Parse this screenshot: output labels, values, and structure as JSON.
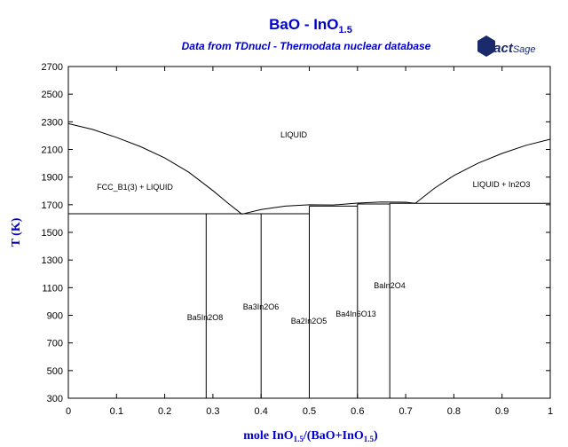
{
  "chart_data": {
    "type": "line",
    "title": {
      "text": "BaO - InO",
      "sub": "1.5"
    },
    "subtitle": "Data from TDnucl - Thermodata nuclear database",
    "logo": [
      "Fact",
      "Sage"
    ],
    "ylabel": "T (K)",
    "xlabel": [
      "mole InO",
      "1.5",
      "/(BaO+InO",
      "1.5",
      ")"
    ],
    "xlim": [
      0,
      1
    ],
    "ylim": [
      300,
      2700
    ],
    "xticks": [
      0,
      0.1,
      0.2,
      0.3,
      0.4,
      0.5,
      0.6,
      0.7,
      0.8,
      0.9,
      1
    ],
    "yticks": [
      300,
      500,
      700,
      900,
      1100,
      1300,
      1500,
      1700,
      1900,
      2100,
      2300,
      2500,
      2700
    ],
    "color": "#000000",
    "curves": [
      {
        "x": [
          0,
          0.05,
          0.1,
          0.15,
          0.2,
          0.25,
          0.3,
          0.33,
          0.36
        ],
        "y": [
          2287,
          2245,
          2187,
          2120,
          2039,
          1935,
          1802,
          1715,
          1632
        ]
      },
      {
        "x": [
          0.36,
          0.4,
          0.45,
          0.5,
          0.55,
          0.6,
          0.65,
          0.7,
          0.72
        ],
        "y": [
          1632,
          1665,
          1690,
          1700,
          1698,
          1712,
          1720,
          1718,
          1710
        ]
      },
      {
        "x": [
          0.72,
          0.76,
          0.8,
          0.85,
          0.9,
          0.95,
          1
        ],
        "y": [
          1710,
          1820,
          1911,
          2000,
          2071,
          2130,
          2174
        ]
      },
      {
        "x": [
          0,
          0.5
        ],
        "y": [
          1635,
          1635
        ]
      },
      {
        "x": [
          0.5,
          0.6
        ],
        "y": [
          1690,
          1690
        ]
      },
      {
        "x": [
          0.6,
          0.667
        ],
        "y": [
          1705,
          1705
        ]
      },
      {
        "x": [
          0.667,
          1
        ],
        "y": [
          1710,
          1710
        ]
      },
      {
        "x": [
          0.286,
          0.286
        ],
        "y": [
          300,
          1635
        ]
      },
      {
        "x": [
          0.4,
          0.4
        ],
        "y": [
          300,
          1635
        ]
      },
      {
        "x": [
          0.5,
          0.5
        ],
        "y": [
          300,
          1690
        ]
      },
      {
        "x": [
          0.6,
          0.6
        ],
        "y": [
          300,
          1705
        ]
      },
      {
        "x": [
          0.667,
          0.667
        ],
        "y": [
          300,
          1710
        ]
      }
    ],
    "annotations": [
      "LIQUID",
      "FCC_B1(3) + LIQUID",
      "LIQUID + In2O3",
      "Ba5In2O8",
      "Ba3In2O6",
      "Ba2In2O5",
      "Ba4In6O13",
      "BaIn2O4"
    ]
  }
}
